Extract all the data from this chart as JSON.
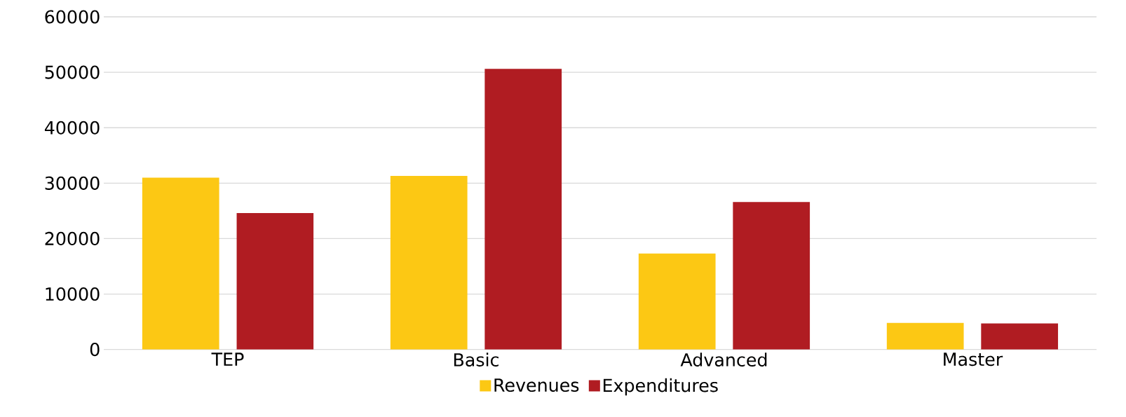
{
  "chart_data": {
    "type": "bar",
    "categories": [
      "TEP",
      "Basic",
      "Advanced",
      "Master"
    ],
    "series": [
      {
        "name": "Revenues",
        "color": "#fcc814",
        "values": [
          31000,
          31300,
          17300,
          4800
        ]
      },
      {
        "name": "Expenditures",
        "color": "#b01c22",
        "values": [
          24600,
          50600,
          26600,
          4700
        ]
      }
    ],
    "ylim": [
      0,
      60000
    ],
    "yticks": [
      0,
      10000,
      20000,
      30000,
      40000,
      50000,
      60000
    ],
    "grid": "y",
    "legend": "bottom"
  }
}
